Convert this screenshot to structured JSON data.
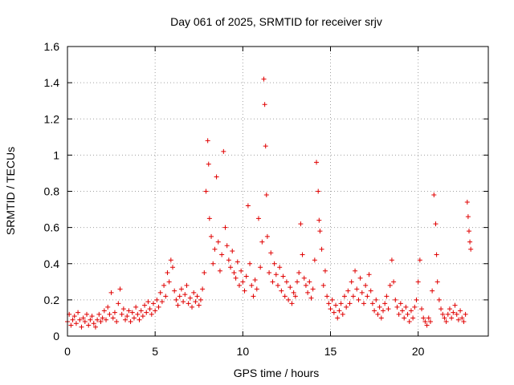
{
  "chart_data": {
    "type": "scatter",
    "title": "Day 061 of 2025, SRMTID for receiver srjv",
    "xlabel": "GPS time / hours",
    "ylabel": "SRMTID / TECUs",
    "xlim": [
      0,
      24
    ],
    "ylim": [
      0,
      1.6
    ],
    "xticks": [
      0,
      5,
      10,
      15,
      20
    ],
    "yticks": [
      0,
      0.2,
      0.4,
      0.6,
      0.8,
      1,
      1.2,
      1.4,
      1.6
    ],
    "xtick_labels": [
      "0",
      "5",
      "10",
      "15",
      "20"
    ],
    "ytick_labels": [
      "0",
      "0.2",
      "0.4",
      "0.6",
      "0.8",
      "1",
      "1.2",
      "1.4",
      "1.6"
    ],
    "grid": true,
    "marker": "+",
    "color": "#e00000",
    "series": [
      {
        "name": "SRMTID",
        "points": [
          [
            0.0,
            0.08
          ],
          [
            0.1,
            0.12
          ],
          [
            0.2,
            0.06
          ],
          [
            0.3,
            0.09
          ],
          [
            0.4,
            0.11
          ],
          [
            0.5,
            0.07
          ],
          [
            0.6,
            0.13
          ],
          [
            0.7,
            0.09
          ],
          [
            0.8,
            0.05
          ],
          [
            0.9,
            0.1
          ],
          [
            1.0,
            0.08
          ],
          [
            1.1,
            0.12
          ],
          [
            1.2,
            0.06
          ],
          [
            1.3,
            0.09
          ],
          [
            1.4,
            0.11
          ],
          [
            1.5,
            0.07
          ],
          [
            1.6,
            0.05
          ],
          [
            1.7,
            0.09
          ],
          [
            1.8,
            0.12
          ],
          [
            1.9,
            0.08
          ],
          [
            2.0,
            0.1
          ],
          [
            2.1,
            0.14
          ],
          [
            2.2,
            0.09
          ],
          [
            2.3,
            0.16
          ],
          [
            2.4,
            0.12
          ],
          [
            2.5,
            0.24
          ],
          [
            2.6,
            0.1
          ],
          [
            2.7,
            0.13
          ],
          [
            2.8,
            0.08
          ],
          [
            2.9,
            0.18
          ],
          [
            3.0,
            0.26
          ],
          [
            3.1,
            0.12
          ],
          [
            3.2,
            0.15
          ],
          [
            3.3,
            0.09
          ],
          [
            3.4,
            0.11
          ],
          [
            3.5,
            0.14
          ],
          [
            3.6,
            0.08
          ],
          [
            3.7,
            0.13
          ],
          [
            3.8,
            0.1
          ],
          [
            3.9,
            0.16
          ],
          [
            4.0,
            0.12
          ],
          [
            4.1,
            0.09
          ],
          [
            4.2,
            0.14
          ],
          [
            4.3,
            0.11
          ],
          [
            4.4,
            0.17
          ],
          [
            4.5,
            0.13
          ],
          [
            4.6,
            0.19
          ],
          [
            4.7,
            0.15
          ],
          [
            4.8,
            0.12
          ],
          [
            4.9,
            0.18
          ],
          [
            5.0,
            0.14
          ],
          [
            5.1,
            0.2
          ],
          [
            5.2,
            0.16
          ],
          [
            5.3,
            0.24
          ],
          [
            5.4,
            0.19
          ],
          [
            5.5,
            0.28
          ],
          [
            5.6,
            0.22
          ],
          [
            5.7,
            0.35
          ],
          [
            5.8,
            0.3
          ],
          [
            5.9,
            0.42
          ],
          [
            6.0,
            0.38
          ],
          [
            6.1,
            0.25
          ],
          [
            6.2,
            0.2
          ],
          [
            6.3,
            0.17
          ],
          [
            6.4,
            0.22
          ],
          [
            6.5,
            0.26
          ],
          [
            6.6,
            0.19
          ],
          [
            6.7,
            0.23
          ],
          [
            6.8,
            0.28
          ],
          [
            6.9,
            0.18
          ],
          [
            7.0,
            0.21
          ],
          [
            7.1,
            0.16
          ],
          [
            7.2,
            0.24
          ],
          [
            7.3,
            0.19
          ],
          [
            7.4,
            0.22
          ],
          [
            7.5,
            0.17
          ],
          [
            7.6,
            0.2
          ],
          [
            7.7,
            0.26
          ],
          [
            7.8,
            0.35
          ],
          [
            7.9,
            0.8
          ],
          [
            8.0,
            1.08
          ],
          [
            8.05,
            0.95
          ],
          [
            8.1,
            0.65
          ],
          [
            8.2,
            0.55
          ],
          [
            8.3,
            0.4
          ],
          [
            8.4,
            0.48
          ],
          [
            8.5,
            0.88
          ],
          [
            8.6,
            0.52
          ],
          [
            8.7,
            0.36
          ],
          [
            8.8,
            0.45
          ],
          [
            8.9,
            1.02
          ],
          [
            9.0,
            0.6
          ],
          [
            9.1,
            0.5
          ],
          [
            9.2,
            0.42
          ],
          [
            9.3,
            0.38
          ],
          [
            9.4,
            0.47
          ],
          [
            9.5,
            0.35
          ],
          [
            9.6,
            0.32
          ],
          [
            9.7,
            0.41
          ],
          [
            9.8,
            0.28
          ],
          [
            9.9,
            0.36
          ],
          [
            10.0,
            0.3
          ],
          [
            10.1,
            0.25
          ],
          [
            10.2,
            0.33
          ],
          [
            10.3,
            0.72
          ],
          [
            10.4,
            0.4
          ],
          [
            10.5,
            0.28
          ],
          [
            10.6,
            0.22
          ],
          [
            10.7,
            0.31
          ],
          [
            10.8,
            0.26
          ],
          [
            10.9,
            0.65
          ],
          [
            11.0,
            0.38
          ],
          [
            11.1,
            0.52
          ],
          [
            11.2,
            1.42
          ],
          [
            11.25,
            1.28
          ],
          [
            11.3,
            1.05
          ],
          [
            11.35,
            0.78
          ],
          [
            11.4,
            0.55
          ],
          [
            11.5,
            0.35
          ],
          [
            11.6,
            0.46
          ],
          [
            11.7,
            0.3
          ],
          [
            11.8,
            0.4
          ],
          [
            11.9,
            0.34
          ],
          [
            12.0,
            0.28
          ],
          [
            12.1,
            0.38
          ],
          [
            12.2,
            0.25
          ],
          [
            12.3,
            0.33
          ],
          [
            12.4,
            0.22
          ],
          [
            12.5,
            0.3
          ],
          [
            12.6,
            0.2
          ],
          [
            12.7,
            0.27
          ],
          [
            12.8,
            0.18
          ],
          [
            12.9,
            0.24
          ],
          [
            13.0,
            0.22
          ],
          [
            13.1,
            0.3
          ],
          [
            13.2,
            0.35
          ],
          [
            13.3,
            0.62
          ],
          [
            13.4,
            0.45
          ],
          [
            13.5,
            0.32
          ],
          [
            13.6,
            0.28
          ],
          [
            13.7,
            0.24
          ],
          [
            13.8,
            0.3
          ],
          [
            13.9,
            0.21
          ],
          [
            14.0,
            0.26
          ],
          [
            14.1,
            0.42
          ],
          [
            14.2,
            0.96
          ],
          [
            14.3,
            0.8
          ],
          [
            14.35,
            0.64
          ],
          [
            14.4,
            0.58
          ],
          [
            14.5,
            0.48
          ],
          [
            14.6,
            0.28
          ],
          [
            14.7,
            0.36
          ],
          [
            14.8,
            0.22
          ],
          [
            14.9,
            0.18
          ],
          [
            15.0,
            0.15
          ],
          [
            15.1,
            0.2
          ],
          [
            15.2,
            0.13
          ],
          [
            15.3,
            0.17
          ],
          [
            15.4,
            0.1
          ],
          [
            15.5,
            0.14
          ],
          [
            15.6,
            0.18
          ],
          [
            15.7,
            0.12
          ],
          [
            15.8,
            0.22
          ],
          [
            15.9,
            0.16
          ],
          [
            16.0,
            0.25
          ],
          [
            16.1,
            0.18
          ],
          [
            16.2,
            0.3
          ],
          [
            16.3,
            0.22
          ],
          [
            16.4,
            0.36
          ],
          [
            16.5,
            0.26
          ],
          [
            16.6,
            0.2
          ],
          [
            16.7,
            0.32
          ],
          [
            16.8,
            0.24
          ],
          [
            16.9,
            0.18
          ],
          [
            17.0,
            0.28
          ],
          [
            17.1,
            0.22
          ],
          [
            17.2,
            0.34
          ],
          [
            17.3,
            0.25
          ],
          [
            17.4,
            0.18
          ],
          [
            17.5,
            0.14
          ],
          [
            17.6,
            0.2
          ],
          [
            17.7,
            0.12
          ],
          [
            17.8,
            0.16
          ],
          [
            17.9,
            0.1
          ],
          [
            18.0,
            0.14
          ],
          [
            18.1,
            0.18
          ],
          [
            18.2,
            0.22
          ],
          [
            18.3,
            0.15
          ],
          [
            18.4,
            0.28
          ],
          [
            18.5,
            0.42
          ],
          [
            18.6,
            0.3
          ],
          [
            18.7,
            0.2
          ],
          [
            18.8,
            0.16
          ],
          [
            18.9,
            0.12
          ],
          [
            19.0,
            0.18
          ],
          [
            19.1,
            0.14
          ],
          [
            19.2,
            0.1
          ],
          [
            19.3,
            0.16
          ],
          [
            19.4,
            0.12
          ],
          [
            19.5,
            0.08
          ],
          [
            19.6,
            0.14
          ],
          [
            19.7,
            0.1
          ],
          [
            19.8,
            0.16
          ],
          [
            19.9,
            0.2
          ],
          [
            20.0,
            0.3
          ],
          [
            20.1,
            0.42
          ],
          [
            20.2,
            0.15
          ],
          [
            20.3,
            0.1
          ],
          [
            20.4,
            0.08
          ],
          [
            20.5,
            0.06
          ],
          [
            20.6,
            0.1
          ],
          [
            20.7,
            0.08
          ],
          [
            20.8,
            0.25
          ],
          [
            20.9,
            0.78
          ],
          [
            21.0,
            0.62
          ],
          [
            21.05,
            0.45
          ],
          [
            21.1,
            0.3
          ],
          [
            21.2,
            0.2
          ],
          [
            21.3,
            0.15
          ],
          [
            21.4,
            0.12
          ],
          [
            21.5,
            0.1
          ],
          [
            21.6,
            0.08
          ],
          [
            21.7,
            0.12
          ],
          [
            21.8,
            0.15
          ],
          [
            21.9,
            0.1
          ],
          [
            22.0,
            0.13
          ],
          [
            22.1,
            0.17
          ],
          [
            22.2,
            0.12
          ],
          [
            22.3,
            0.09
          ],
          [
            22.4,
            0.14
          ],
          [
            22.5,
            0.1
          ],
          [
            22.6,
            0.08
          ],
          [
            22.7,
            0.12
          ],
          [
            22.8,
            0.74
          ],
          [
            22.85,
            0.66
          ],
          [
            22.9,
            0.58
          ],
          [
            22.95,
            0.52
          ],
          [
            23.0,
            0.48
          ]
        ]
      }
    ]
  }
}
